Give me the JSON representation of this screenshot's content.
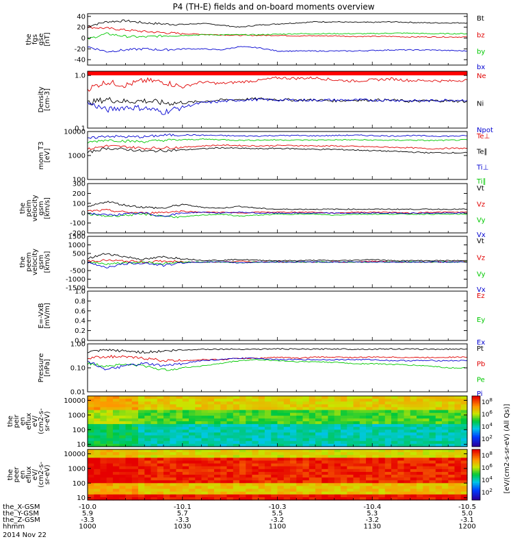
{
  "chart_data": {
    "type": "line",
    "title": "P4 (TH-E) fields and on-board moments overview",
    "date_label": "2014 Nov 22",
    "x_time_ticks": [
      "1000",
      "1030",
      "1100",
      "1130",
      "1200"
    ],
    "panels": [
      {
        "id": "fgs",
        "ylabel": [
          "the",
          "fgs",
          "gse",
          "[nT]"
        ],
        "yscale": "linear",
        "ylim": [
          -50,
          45
        ],
        "yticks": [
          {
            "v": 40,
            "t": "40"
          },
          {
            "v": 20,
            "t": "20"
          },
          {
            "v": 0,
            "t": "0"
          },
          {
            "v": -20,
            "t": "-20"
          },
          {
            "v": -40,
            "t": "-40"
          }
        ],
        "series": [
          {
            "name": "Bt",
            "color": "#000000",
            "values": [
              22,
              30,
              32,
              28,
              26,
              25,
              27,
              24,
              20,
              24,
              26,
              28,
              30,
              30,
              29,
              29,
              30,
              29,
              28,
              28,
              28
            ]
          },
          {
            "name": "bz",
            "color": "#e00000",
            "values": [
              20,
              18,
              15,
              12,
              10,
              8,
              7,
              6,
              5,
              5,
              5,
              4,
              4,
              4,
              3,
              3,
              3,
              2,
              2,
              2,
              2
            ]
          },
          {
            "name": "by",
            "color": "#00c800",
            "values": [
              -2,
              8,
              3,
              2,
              4,
              5,
              6,
              6,
              6,
              6,
              7,
              8,
              8,
              8,
              8,
              8,
              9,
              9,
              8,
              8,
              8
            ]
          },
          {
            "name": "bx",
            "color": "#0000d0",
            "values": [
              -16,
              -25,
              -22,
              -20,
              -22,
              -20,
              -20,
              -22,
              -16,
              -18,
              -24,
              -24,
              -24,
              -24,
              -24,
              -23,
              -22,
              -22,
              -22,
              -23,
              -24
            ]
          }
        ]
      },
      {
        "id": "density",
        "ylabel": [
          "Density",
          "[cm-3]"
        ],
        "yscale": "log",
        "ylim": [
          0.1,
          1.2
        ],
        "yticks": [
          {
            "v": 1.0,
            "t": "1.0"
          },
          {
            "v": 0.1,
            "t": "0.1"
          }
        ],
        "top_band": {
          "color": "#ff0000"
        },
        "series": [
          {
            "name": "Ne",
            "color": "#e00000",
            "values": [
              0.55,
              0.75,
              0.65,
              0.8,
              0.75,
              0.6,
              0.75,
              0.7,
              0.75,
              0.8,
              0.9,
              0.88,
              0.9,
              0.82,
              0.78,
              0.82,
              0.86,
              0.8,
              0.8,
              0.78,
              0.82
            ]
          },
          {
            "name": "Ni",
            "color": "#000000",
            "values": [
              0.3,
              0.35,
              0.32,
              0.33,
              0.3,
              0.3,
              0.32,
              0.34,
              0.35,
              0.36,
              0.35,
              0.34,
              0.34,
              0.33,
              0.34,
              0.34,
              0.34,
              0.32,
              0.33,
              0.33,
              0.32
            ]
          },
          {
            "name": "Npot",
            "color": "#0000d0",
            "values": [
              0.3,
              0.22,
              0.25,
              0.24,
              0.2,
              0.25,
              0.3,
              0.32,
              0.34,
              0.35,
              0.34,
              0.34,
              0.34,
              0.34,
              0.34,
              0.34,
              0.34,
              0.33,
              0.33,
              0.34,
              0.34
            ]
          }
        ]
      },
      {
        "id": "temperature",
        "ylabel": [
          "mom T3",
          "[eV]"
        ],
        "yscale": "log",
        "ylim": [
          100,
          10000
        ],
        "yticks": [
          {
            "v": 10000,
            "t": "10000"
          },
          {
            "v": 1000,
            "t": "1000"
          },
          {
            "v": 100,
            "t": "100"
          }
        ],
        "series": [
          {
            "name": "Te⊥",
            "color": "#e00000",
            "values": [
              1800,
              2500,
              2300,
              2000,
              2100,
              2200,
              2500,
              2700,
              2600,
              2500,
              2600,
              2600,
              2500,
              2500,
              2400,
              2300,
              2200,
              2100,
              1900,
              2000,
              2000
            ]
          },
          {
            "name": "Te∥",
            "color": "#000000",
            "values": [
              1300,
              2000,
              1800,
              1500,
              1600,
              1700,
              1900,
              2100,
              2000,
              1900,
              2000,
              1900,
              1800,
              1800,
              1700,
              1600,
              1500,
              1400,
              1300,
              1300,
              1300
            ]
          },
          {
            "name": "Ti⊥",
            "color": "#0000d0",
            "values": [
              5000,
              6500,
              6000,
              6000,
              7000,
              7200,
              7000,
              6800,
              6500,
              6500,
              6800,
              6800,
              6600,
              6800,
              7000,
              6800,
              6500,
              6800,
              6500,
              6400,
              6600
            ]
          },
          {
            "name": "Ti∥",
            "color": "#00c800",
            "values": [
              3500,
              4500,
              4000,
              3800,
              4300,
              4500,
              4800,
              4600,
              4300,
              4400,
              4500,
              4400,
              4400,
              4500,
              4500,
              4400,
              4300,
              4400,
              4200,
              4300,
              4500
            ]
          }
        ]
      },
      {
        "id": "velocity_esa",
        "ylabel": [
          "the",
          "peim",
          "velocity",
          "gsm",
          "[km/s]"
        ],
        "yscale": "linear",
        "ylim": [
          -200,
          300
        ],
        "yticks": [
          {
            "v": 300,
            "t": "300"
          },
          {
            "v": 200,
            "t": "200"
          },
          {
            "v": 100,
            "t": "100"
          },
          {
            "v": 0,
            "t": "0"
          },
          {
            "v": -100,
            "t": "-100"
          },
          {
            "v": -200,
            "t": "-200"
          }
        ],
        "series": [
          {
            "name": "Vt",
            "color": "#000000",
            "values": [
              60,
              120,
              80,
              60,
              50,
              90,
              60,
              50,
              70,
              50,
              40,
              40,
              40,
              40,
              40,
              40,
              40,
              40,
              40,
              40,
              40
            ]
          },
          {
            "name": "Vz",
            "color": "#e00000",
            "values": [
              20,
              30,
              10,
              0,
              10,
              20,
              10,
              10,
              0,
              10,
              10,
              10,
              10,
              0,
              10,
              10,
              10,
              0,
              10,
              10,
              10
            ]
          },
          {
            "name": "Vy",
            "color": "#00c800",
            "values": [
              -10,
              -30,
              -20,
              -10,
              -30,
              -40,
              -20,
              -10,
              -30,
              -20,
              -10,
              -10,
              -10,
              -20,
              -10,
              -10,
              -10,
              -10,
              -10,
              -10,
              -10
            ]
          },
          {
            "name": "Vx",
            "color": "#0000d0",
            "values": [
              0,
              -20,
              -10,
              0,
              -30,
              0,
              10,
              0,
              10,
              0,
              0,
              0,
              0,
              0,
              0,
              0,
              0,
              0,
              0,
              0,
              0
            ]
          }
        ]
      },
      {
        "id": "velocity_esa_full",
        "ylabel": [
          "the",
          "peem",
          "velocity",
          "gsm",
          "[km/s]"
        ],
        "yscale": "linear",
        "ylim": [
          -1500,
          1500
        ],
        "yticks": [
          {
            "v": 1500,
            "t": "1500"
          },
          {
            "v": 1000,
            "t": "1000"
          },
          {
            "v": 500,
            "t": "500"
          },
          {
            "v": 0,
            "t": "0"
          },
          {
            "v": -500,
            "t": "-500"
          },
          {
            "v": -1000,
            "t": "-1000"
          },
          {
            "v": -1500,
            "t": "-1500"
          }
        ],
        "series": [
          {
            "name": "Vt",
            "color": "#000000",
            "values": [
              200,
              500,
              300,
              150,
              300,
              200,
              100,
              100,
              150,
              100,
              80,
              80,
              100,
              80,
              100,
              150,
              80,
              80,
              80,
              80,
              80
            ]
          },
          {
            "name": "Vz",
            "color": "#e00000",
            "values": [
              50,
              100,
              50,
              0,
              50,
              0,
              0,
              0,
              50,
              0,
              0,
              0,
              0,
              0,
              0,
              50,
              0,
              0,
              0,
              0,
              0
            ]
          },
          {
            "name": "Vy",
            "color": "#00c800",
            "values": [
              0,
              -100,
              -50,
              0,
              -100,
              0,
              0,
              0,
              -50,
              0,
              0,
              0,
              0,
              0,
              0,
              0,
              0,
              0,
              0,
              0,
              0
            ]
          },
          {
            "name": "Vx",
            "color": "#0000d0",
            "values": [
              -50,
              -300,
              -100,
              -50,
              -200,
              -50,
              0,
              0,
              -50,
              0,
              0,
              0,
              0,
              0,
              0,
              0,
              0,
              0,
              0,
              0,
              0
            ]
          }
        ]
      },
      {
        "id": "efield",
        "ylabel": [
          "E=-VxB",
          "[mV/m]"
        ],
        "yscale": "linear",
        "ylim": [
          0,
          1
        ],
        "yticks": [
          {
            "v": 1.0,
            "t": "1.0"
          },
          {
            "v": 0.8,
            "t": "0.8"
          },
          {
            "v": 0.6,
            "t": "0.6"
          },
          {
            "v": 0.4,
            "t": "0.4"
          },
          {
            "v": 0.2,
            "t": "0.2"
          },
          {
            "v": 0.0,
            "t": "0.0"
          }
        ],
        "series": [
          {
            "name": "Ez",
            "color": "#e00000",
            "values": []
          },
          {
            "name": "Ey",
            "color": "#00c800",
            "values": []
          },
          {
            "name": "Ex",
            "color": "#0000d0",
            "values": []
          }
        ]
      },
      {
        "id": "pressure",
        "ylabel": [
          "Pressure",
          "[nPa]"
        ],
        "yscale": "log",
        "ylim": [
          0.01,
          1.0
        ],
        "yticks": [
          {
            "v": 1.0,
            "t": "1.00"
          },
          {
            "v": 0.1,
            "t": "0.10"
          },
          {
            "v": 0.01,
            "t": "0.01"
          }
        ],
        "series": [
          {
            "name": "Pt",
            "color": "#000000",
            "values": [
              0.45,
              0.55,
              0.5,
              0.45,
              0.5,
              0.55,
              0.6,
              0.6,
              0.6,
              0.6,
              0.62,
              0.6,
              0.6,
              0.62,
              0.6,
              0.6,
              0.62,
              0.6,
              0.6,
              0.6,
              0.62
            ]
          },
          {
            "name": "Pb",
            "color": "#e00000",
            "values": [
              0.25,
              0.3,
              0.28,
              0.25,
              0.2,
              0.2,
              0.22,
              0.22,
              0.25,
              0.25,
              0.28,
              0.25,
              0.28,
              0.28,
              0.27,
              0.28,
              0.28,
              0.27,
              0.27,
              0.28,
              0.28
            ]
          },
          {
            "name": "Pe",
            "color": "#00c800",
            "values": [
              0.15,
              0.12,
              0.14,
              0.12,
              0.08,
              0.1,
              0.12,
              0.15,
              0.2,
              0.22,
              0.2,
              0.18,
              0.18,
              0.17,
              0.15,
              0.15,
              0.14,
              0.13,
              0.12,
              0.1,
              0.1
            ]
          },
          {
            "name": "Pi",
            "color": "#0000d0",
            "values": [
              0.18,
              0.08,
              0.12,
              0.15,
              0.12,
              0.15,
              0.2,
              0.22,
              0.25,
              0.25,
              0.22,
              0.22,
              0.22,
              0.22,
              0.22,
              0.22,
              0.2,
              0.2,
              0.2,
              0.2,
              0.2
            ]
          }
        ]
      },
      {
        "id": "ion_spectrogram",
        "type": "heatmap",
        "ylabel": [
          "the",
          "peir",
          "en",
          "eflux",
          "eV/",
          "(cm2-s-",
          "sr-eV)"
        ],
        "yscale": "log",
        "ylim": [
          7,
          20000
        ],
        "yticks": [
          {
            "v": 10000,
            "t": "10000"
          },
          {
            "v": 1000,
            "t": "1000"
          },
          {
            "v": 100,
            "t": "100"
          },
          {
            "v": 10,
            "t": "10"
          }
        ],
        "colorbar_ticks": [
          "10",
          "10",
          "10",
          "10"
        ],
        "colorbar_exps": [
          "8",
          "6",
          "4",
          "2"
        ]
      },
      {
        "id": "electron_spectrogram",
        "type": "heatmap",
        "ylabel": [
          "the",
          "peer",
          "en",
          "eflux",
          "eV/",
          "(cm2-s-",
          "sr-eV)"
        ],
        "yscale": "log",
        "ylim": [
          7,
          20000
        ],
        "yticks": [
          {
            "v": 10000,
            "t": "10000"
          },
          {
            "v": 1000,
            "t": "1000"
          },
          {
            "v": 100,
            "t": "100"
          },
          {
            "v": 10,
            "t": "10"
          }
        ],
        "colorbar_ticks": [
          "10",
          "10",
          "10",
          "10"
        ],
        "colorbar_exps": [
          "8",
          "6",
          "4",
          "2"
        ]
      }
    ],
    "colorbar_label": "[eV/(cm2-s-sr-eV) (All Qs)]",
    "orbit_rows": [
      {
        "label": "the_X-GSM",
        "values": [
          "-10.0",
          "-10.1",
          "-10.3",
          "-10.4",
          "-10.5"
        ]
      },
      {
        "label": "the_Y-GSM",
        "values": [
          "5.9",
          "5.7",
          "5.5",
          "5.3",
          "5.0"
        ]
      },
      {
        "label": "the_Z-GSM",
        "values": [
          "-3.3",
          "-3.3",
          "-3.2",
          "-3.2",
          "-3.1"
        ]
      },
      {
        "label": "hhmm",
        "values": [
          "1000",
          "1030",
          "1100",
          "1130",
          "1200"
        ]
      }
    ]
  }
}
